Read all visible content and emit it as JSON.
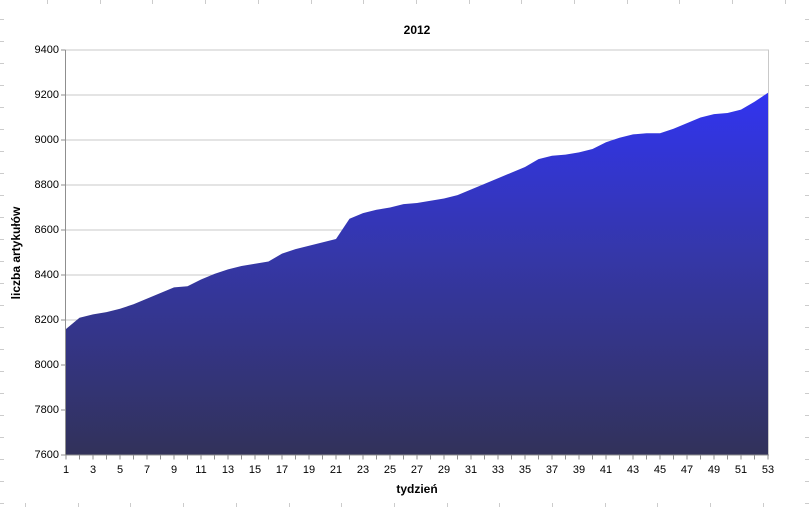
{
  "chart_data": {
    "type": "area",
    "title": "2012",
    "xlabel": "tydzień",
    "ylabel": "liczba artykułów",
    "x": [
      1,
      2,
      3,
      4,
      5,
      6,
      7,
      8,
      9,
      10,
      11,
      12,
      13,
      14,
      15,
      16,
      17,
      18,
      19,
      20,
      21,
      22,
      23,
      24,
      25,
      26,
      27,
      28,
      29,
      30,
      31,
      32,
      33,
      34,
      35,
      36,
      37,
      38,
      39,
      40,
      41,
      42,
      43,
      44,
      45,
      46,
      47,
      48,
      49,
      50,
      51,
      52,
      53
    ],
    "values": [
      8160,
      8210,
      8225,
      8235,
      8250,
      8270,
      8295,
      8320,
      8345,
      8350,
      8380,
      8405,
      8425,
      8440,
      8450,
      8460,
      8495,
      8515,
      8530,
      8545,
      8560,
      8650,
      8675,
      8690,
      8700,
      8715,
      8720,
      8730,
      8740,
      8755,
      8780,
      8805,
      8830,
      8855,
      8880,
      8915,
      8930,
      8935,
      8945,
      8960,
      8990,
      9010,
      9025,
      9030,
      9030,
      9050,
      9075,
      9100,
      9115,
      9120,
      9135,
      9170,
      9210
    ],
    "ylim": [
      7600,
      9400
    ],
    "ytick_step": 200,
    "xtick_label_every": 2,
    "grid": true,
    "legend": "none",
    "colors": {
      "area_gradient_top": "#3134f0",
      "area_gradient_mid": "#3537a8",
      "area_gradient_bottom": "#32325a",
      "gridline": "#c9c9c9",
      "axis": "#8f8f8f",
      "right_frame": "#c9c9c9",
      "text": "#000000",
      "edge_marks": "#cccccc"
    }
  }
}
